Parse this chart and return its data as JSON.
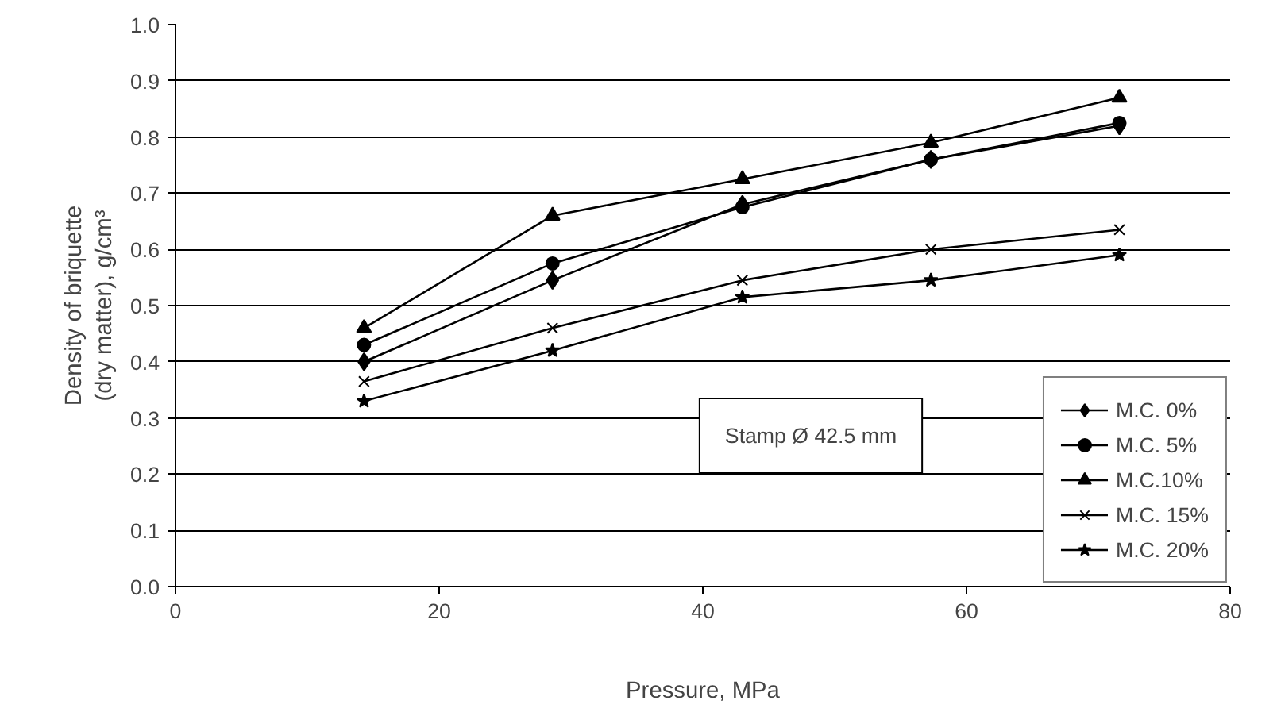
{
  "chart_data": {
    "type": "line",
    "xlabel": "Pressure, MPa",
    "ylabel": "Density of briquette\n(dry matter), g/cm³",
    "x": [
      14.3,
      28.6,
      43.0,
      57.3,
      71.6
    ],
    "xlim": [
      0,
      80
    ],
    "xticks": [
      0,
      20,
      40,
      60,
      80
    ],
    "ylim": [
      0,
      1.0
    ],
    "yticks": [
      {
        "value": 0,
        "label": "0.0"
      },
      0.1,
      0.2,
      0.3,
      0.4,
      0.5,
      0.6,
      0.7,
      0.8,
      0.9,
      {
        "value": 1.0,
        "label": "1.0"
      }
    ],
    "grid": "y",
    "legend": "bottom right",
    "line_style": "solid",
    "annotations": [
      "Stamp Ø 42.5 mm"
    ],
    "series": [
      {
        "name": "M.C. 0%",
        "color": "#000000",
        "marker": "diamond",
        "values": [
          0.4,
          0.545,
          0.68,
          0.76,
          0.82
        ]
      },
      {
        "name": "M.C. 5%",
        "color": "#000000",
        "marker": "circle",
        "values": [
          0.43,
          0.575,
          0.675,
          0.76,
          0.825
        ]
      },
      {
        "name": "M.C.10%",
        "color": "#000000",
        "marker": "triangle",
        "values": [
          0.46,
          0.66,
          0.725,
          0.79,
          0.87
        ]
      },
      {
        "name": "M.C. 15%",
        "color": "#000000",
        "marker": "cross",
        "values": [
          0.365,
          0.46,
          0.545,
          0.6,
          0.635
        ]
      },
      {
        "name": "M.C. 20%",
        "color": "#000000",
        "marker": "star",
        "values": [
          0.33,
          0.42,
          0.515,
          0.545,
          0.59
        ]
      }
    ]
  }
}
